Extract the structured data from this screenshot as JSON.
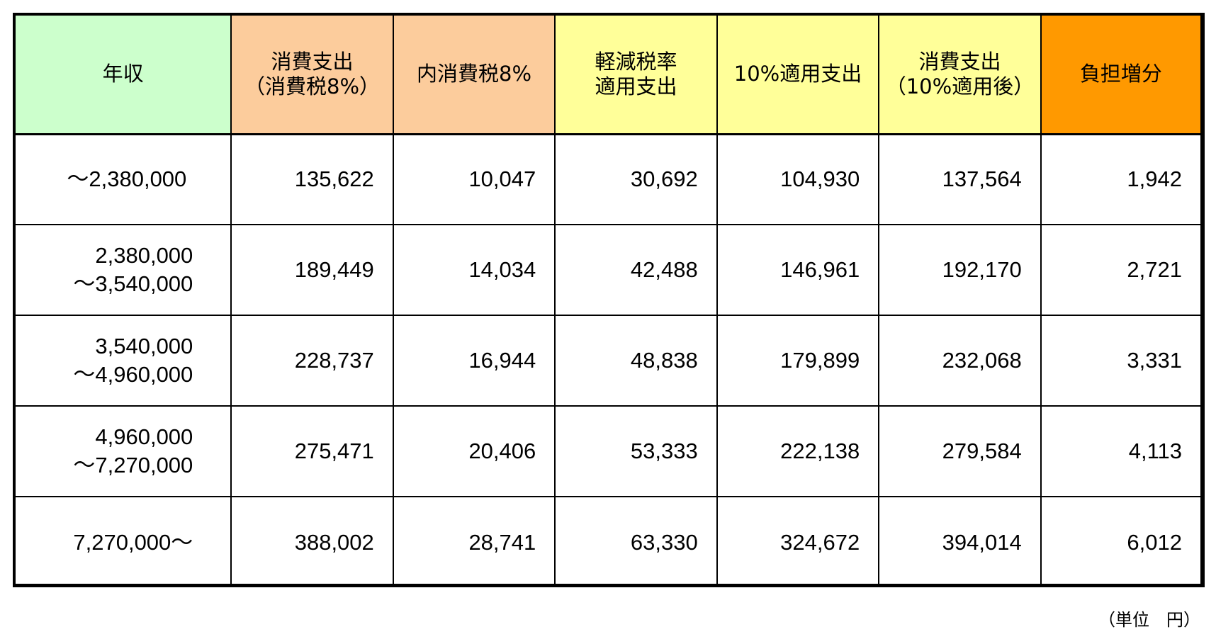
{
  "chart_data": {
    "type": "table",
    "header_colors": [
      "#ccffcc",
      "#fccc9c",
      "#fccc9c",
      "#ffff99",
      "#ffff99",
      "#ffff99",
      "#ff9900"
    ],
    "columns": [
      {
        "lines": [
          "年収"
        ]
      },
      {
        "lines": [
          "消費支出",
          "（消費税8%）"
        ]
      },
      {
        "lines": [
          "内消費税8%"
        ]
      },
      {
        "lines": [
          "軽減税率",
          "適用支出"
        ]
      },
      {
        "lines": [
          "10%適用支出"
        ]
      },
      {
        "lines": [
          "消費支出",
          "（10%適用後）"
        ]
      },
      {
        "lines": [
          "負担増分"
        ]
      }
    ],
    "rows": [
      {
        "income": [
          "～2,380,000"
        ],
        "values": [
          "135,622",
          "10,047",
          "30,692",
          "104,930",
          "137,564",
          "1,942"
        ]
      },
      {
        "income": [
          "2,380,000",
          "～3,540,000"
        ],
        "values": [
          "189,449",
          "14,034",
          "42,488",
          "146,961",
          "192,170",
          "2,721"
        ]
      },
      {
        "income": [
          "3,540,000",
          "～4,960,000"
        ],
        "values": [
          "228,737",
          "16,944",
          "48,838",
          "179,899",
          "232,068",
          "3,331"
        ]
      },
      {
        "income": [
          "4,960,000",
          "～7,270,000"
        ],
        "values": [
          "275,471",
          "20,406",
          "53,333",
          "222,138",
          "279,584",
          "4,113"
        ]
      },
      {
        "income": [
          "7,270,000～"
        ],
        "values": [
          "388,002",
          "28,741",
          "63,330",
          "324,672",
          "394,014",
          "6,012"
        ]
      }
    ],
    "unit_note": "（単位　円）"
  }
}
